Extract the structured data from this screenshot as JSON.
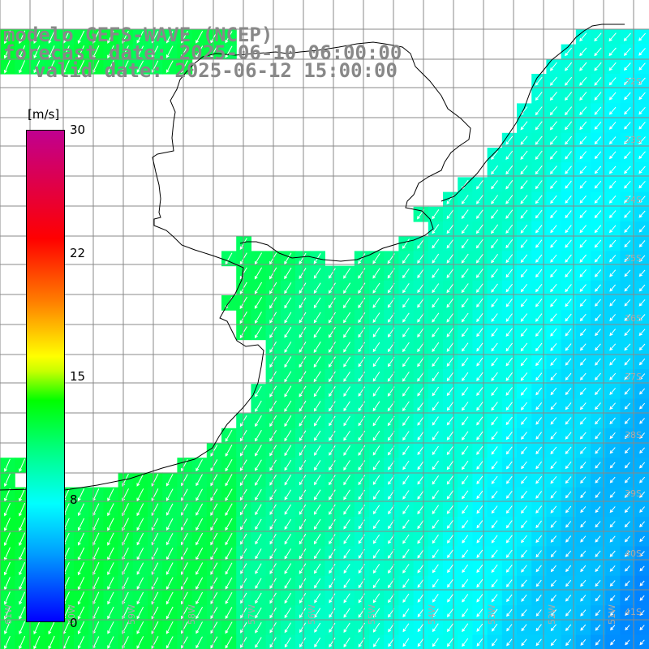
{
  "title": {
    "line1": "modelo GEFS-WAVE (NCEP)",
    "line2": "forecast date: 2025-06-10 06:00:00",
    "line3": "valid date: 2025-06-12 15:00:00"
  },
  "legend": {
    "unit": "[m/s]",
    "ticks": [
      "30",
      "22",
      "15",
      "8",
      "0"
    ],
    "tick_values": [
      30,
      22,
      15,
      8,
      0
    ],
    "range": [
      0,
      30
    ],
    "colors": [
      "#0000ff",
      "#00a0ff",
      "#00ffff",
      "#00ff80",
      "#00ff00",
      "#ffff00",
      "#ff8000",
      "#ff0000",
      "#c00090"
    ]
  },
  "map": {
    "lat_labels": [
      "32S",
      "33S",
      "34S",
      "35S",
      "36S",
      "37S",
      "38S",
      "39S",
      "40S",
      "41S"
    ],
    "lon_labels": [
      "61W",
      "60W",
      "59W",
      "58W",
      "57W",
      "56W",
      "55W",
      "54W",
      "53W",
      "52W",
      "51W"
    ],
    "lat_range": [
      -41.2,
      -31.2
    ],
    "lon_range": [
      -61.3,
      -50.7
    ],
    "wind_direction": "from north-east",
    "colors": {
      "land": "#ffffff",
      "coast": "#000000",
      "grid": "#888888",
      "arrow": "#ffffff"
    }
  }
}
